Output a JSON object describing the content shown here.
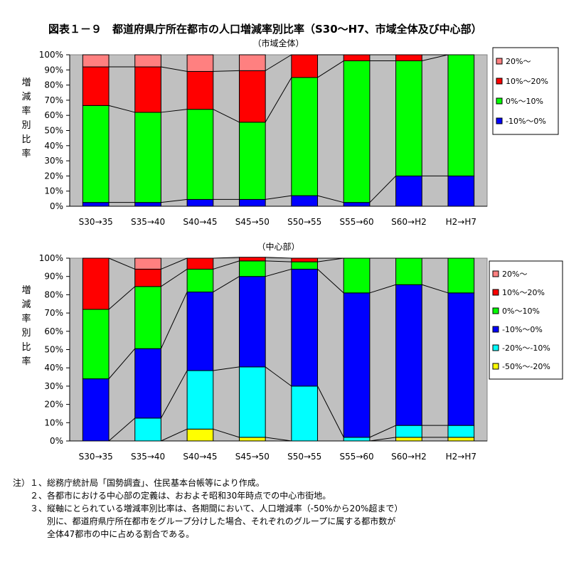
{
  "title": "図表１－９　都道府県庁所在都市の人口増減率別比率（S30～H7、市域全体及び中心部）",
  "colors": {
    "c20": "#ff8080",
    "c10_20": "#ff0000",
    "c0_10": "#00ff00",
    "cm10_0": "#0000ff",
    "cm20_m10": "#00ffff",
    "cm50_m20": "#ffff00",
    "plot_bg": "#c0c0c0"
  },
  "chart_data": [
    {
      "type": "bar",
      "stacked": true,
      "title": "（市域全体）",
      "ylabel": "増減率別比率",
      "ylim": [
        0,
        100
      ],
      "yticks": [
        "0%",
        "10%",
        "20%",
        "30%",
        "40%",
        "50%",
        "60%",
        "70%",
        "80%",
        "90%",
        "100%"
      ],
      "categories": [
        "S30→35",
        "S35→40",
        "S40→45",
        "S45→50",
        "S50→55",
        "S55→60",
        "S60→H2",
        "H2→H7"
      ],
      "legend_position": "right",
      "series": [
        {
          "name": "-10%～0%",
          "color": "#0000ff",
          "values": [
            2.5,
            2.5,
            4.5,
            4.5,
            7,
            2.5,
            20,
            20
          ]
        },
        {
          "name": "0%～10%",
          "color": "#00ff00",
          "values": [
            64,
            59.5,
            59.5,
            51,
            78,
            93.5,
            76,
            80
          ]
        },
        {
          "name": "10%～20%",
          "color": "#ff0000",
          "values": [
            25.5,
            30,
            25,
            34,
            15,
            4,
            4,
            0
          ]
        },
        {
          "name": "20%～",
          "color": "#ff8080",
          "values": [
            8,
            8,
            11,
            10.5,
            0,
            0,
            0,
            0
          ]
        }
      ]
    },
    {
      "type": "bar",
      "stacked": true,
      "title": "（中心部）",
      "ylabel": "増減率別比率",
      "ylim": [
        0,
        100
      ],
      "yticks": [
        "0%",
        "10%",
        "20%",
        "30%",
        "40%",
        "50%",
        "60%",
        "70%",
        "80%",
        "90%",
        "100%"
      ],
      "categories": [
        "S30→35",
        "S35→40",
        "S40→45",
        "S45→50",
        "S50→55",
        "S55→60",
        "S60→H2",
        "H2→H7"
      ],
      "legend_position": "right",
      "series": [
        {
          "name": "-50%～-20%",
          "color": "#ffff00",
          "values": [
            0,
            0,
            6.5,
            2,
            0,
            0,
            2,
            2
          ]
        },
        {
          "name": "-20%～-10%",
          "color": "#00ffff",
          "values": [
            0,
            12.5,
            32,
            38.5,
            30,
            2,
            6.5,
            6.5
          ]
        },
        {
          "name": "-10%～0%",
          "color": "#0000ff",
          "values": [
            34,
            38,
            43,
            49.5,
            64,
            79,
            77,
            72.5
          ]
        },
        {
          "name": "0%～10%",
          "color": "#00ff00",
          "values": [
            38,
            34,
            12.5,
            8.5,
            4,
            19,
            14.5,
            19
          ]
        },
        {
          "name": "10%～20%",
          "color": "#ff0000",
          "values": [
            28,
            9.5,
            6,
            2,
            2,
            0,
            0,
            0
          ]
        },
        {
          "name": "20%～",
          "color": "#ff8080",
          "values": [
            0,
            6,
            0,
            0,
            0,
            0,
            0,
            0
          ]
        }
      ]
    }
  ],
  "notes": [
    "注）１、総務庁統計局「国勢調査」、住民基本台帳等により作成。",
    "　　２、各都市における中心部の定義は、おおよそ昭和30年時点での中心市街地。",
    "　　３、縦軸にとられている増減率別比率は、各期間において、人口増減率（-50%から20%超まで）",
    "　　　　別に、都道府県庁所在都市をグループ分けした場合、それぞれのグループに属する都市数が",
    "　　　　全体47都市の中に占める割合である。"
  ]
}
